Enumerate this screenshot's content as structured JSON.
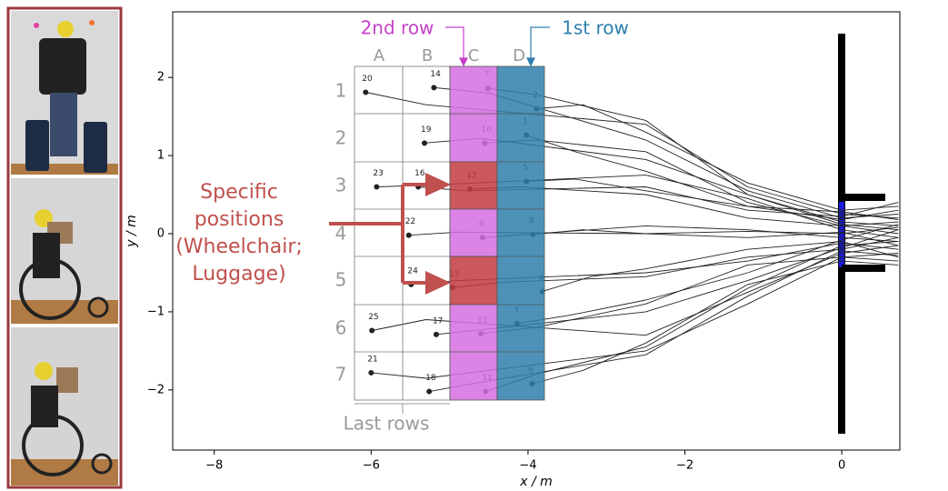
{
  "chart_data": {
    "type": "line",
    "x_label": "x / m",
    "y_label": "y / m",
    "xlim": [
      -8.53,
      0.74
    ],
    "ylim": [
      -2.77,
      2.84
    ],
    "xticks": [
      {
        "value": -8,
        "label": "−8"
      },
      {
        "value": -6,
        "label": "−6"
      },
      {
        "value": -4,
        "label": "−4"
      },
      {
        "value": -2,
        "label": "−2"
      },
      0
    ],
    "yticks": [
      2,
      1,
      0,
      {
        "value": -1,
        "label": "−1"
      },
      {
        "value": -2,
        "label": "−2"
      }
    ],
    "color": "#222222",
    "seat_map": {
      "columns": [
        "A",
        "B",
        "C",
        "D"
      ],
      "rows": [
        "1",
        "2",
        "3",
        "4",
        "5",
        "6",
        "7"
      ],
      "last_rows": "Last rows",
      "second_row": "2nd row",
      "first_row": "1st row"
    },
    "annotation": [
      "Specific",
      "positions",
      "(Wheelchair;",
      "Luggage)"
    ],
    "series": [
      {
        "name": "20",
        "x": [
          -6.07,
          -5.3,
          -2.5,
          -1.2,
          0,
          0.72
        ],
        "y": [
          1.81,
          1.65,
          1.4,
          0.6,
          0.25,
          0.2
        ]
      },
      {
        "name": "14",
        "x": [
          -5.2,
          -4.5,
          -2.5,
          -1.2,
          0,
          0.72
        ],
        "y": [
          1.87,
          1.8,
          1.2,
          0.55,
          0.2,
          0.25
        ]
      },
      {
        "name": "7",
        "x": [
          -4.51,
          -3.9,
          -2.5,
          -1.2,
          0,
          0.72
        ],
        "y": [
          1.86,
          1.78,
          1.45,
          0.5,
          0.15,
          0.1
        ]
      },
      {
        "name": "2",
        "x": [
          -3.89,
          -3.3,
          -2.5,
          -1.2,
          0,
          0.72
        ],
        "y": [
          1.6,
          1.65,
          1.3,
          0.65,
          0.3,
          0.35
        ]
      },
      {
        "name": "19",
        "x": [
          -5.32,
          -4.6,
          -2.5,
          -1.2,
          0,
          0.72
        ],
        "y": [
          1.16,
          1.22,
          0.95,
          0.5,
          0.12,
          0.05
        ]
      },
      {
        "name": "10",
        "x": [
          -4.55,
          -3.9,
          -2.5,
          -1.2,
          0,
          0.72
        ],
        "y": [
          1.16,
          1.2,
          1.05,
          0.4,
          0.1,
          0.15
        ]
      },
      {
        "name": "1",
        "x": [
          -4.02,
          -3.4,
          -2.5,
          -1.2,
          0,
          0.72
        ],
        "y": [
          1.26,
          1.05,
          0.8,
          0.35,
          0.18,
          0.3
        ]
      },
      {
        "name": "23",
        "x": [
          -5.93,
          -5.3,
          -2.5,
          -1.2,
          0,
          0.72
        ],
        "y": [
          0.6,
          0.62,
          0.75,
          0.45,
          0.05,
          -0.05
        ]
      },
      {
        "name": "16",
        "x": [
          -5.4,
          -4.8,
          -2.5,
          -1.2,
          0,
          0.72
        ],
        "y": [
          0.6,
          0.55,
          0.6,
          0.3,
          0.22,
          0.4
        ]
      },
      {
        "name": "13",
        "x": [
          -4.74,
          -4.1,
          -2.5,
          -1.2,
          0,
          0.72
        ],
        "y": [
          0.57,
          0.6,
          0.5,
          0.2,
          0.1,
          0.0
        ]
      },
      {
        "name": "5",
        "x": [
          -4.02,
          -3.4,
          -2.5,
          -1.2,
          0,
          0.72
        ],
        "y": [
          0.67,
          0.7,
          0.55,
          0.35,
          0.28,
          0.18
        ]
      },
      {
        "name": "22",
        "x": [
          -5.52,
          -4.9,
          -2.5,
          -1.2,
          0,
          0.72
        ],
        "y": [
          -0.02,
          0.02,
          0.0,
          0.03,
          0.0,
          0.08
        ]
      },
      {
        "name": "9",
        "x": [
          -4.58,
          -3.9,
          -2.5,
          -1.2,
          0,
          0.72
        ],
        "y": [
          -0.05,
          0.0,
          0.1,
          0.05,
          -0.05,
          -0.1
        ]
      },
      {
        "name": "8",
        "x": [
          -3.94,
          -3.3,
          -2.5,
          -1.2,
          0,
          0.72
        ],
        "y": [
          -0.01,
          0.05,
          0.0,
          -0.05,
          0.02,
          -0.15
        ]
      },
      {
        "name": "24",
        "x": [
          -5.49,
          -4.9,
          -2.5,
          -1.2,
          0,
          0.72
        ],
        "y": [
          -0.65,
          -0.6,
          -0.5,
          -0.35,
          -0.12,
          -0.2
        ]
      },
      {
        "name": "15",
        "x": [
          -4.96,
          -4.3,
          -2.5,
          -1.2,
          0,
          0.72
        ],
        "y": [
          -0.69,
          -0.62,
          -0.55,
          -0.3,
          -0.2,
          -0.05
        ]
      },
      {
        "name": "4",
        "x": [
          -3.82,
          -3.2,
          -2.5,
          -1.2,
          0,
          0.72
        ],
        "y": [
          -0.74,
          -0.55,
          -0.45,
          -0.2,
          -0.1,
          -0.3
        ]
      },
      {
        "name": "25",
        "x": [
          -5.99,
          -5.3,
          -2.5,
          -1.2,
          0,
          0.72
        ],
        "y": [
          -1.24,
          -1.1,
          -1.3,
          -0.75,
          -0.25,
          -0.15
        ]
      },
      {
        "name": "17",
        "x": [
          -5.17,
          -4.5,
          -2.5,
          -1.2,
          0,
          0.72
        ],
        "y": [
          -1.29,
          -1.22,
          -1.0,
          -0.6,
          -0.18,
          0.05
        ]
      },
      {
        "name": "12",
        "x": [
          -4.6,
          -3.9,
          -2.5,
          -1.2,
          0,
          0.72
        ],
        "y": [
          -1.28,
          -1.2,
          -0.9,
          -0.4,
          -0.3,
          -0.25
        ]
      },
      {
        "name": "3",
        "x": [
          -4.14,
          -3.5,
          -2.5,
          -1.2,
          0,
          0.72
        ],
        "y": [
          -1.15,
          -1.05,
          -0.85,
          -0.5,
          -0.08,
          0.12
        ]
      },
      {
        "name": "21",
        "x": [
          -6.0,
          -5.3,
          -2.5,
          -1.2,
          0,
          0.72
        ],
        "y": [
          -1.78,
          -1.85,
          -1.5,
          -0.9,
          -0.3,
          -0.35
        ]
      },
      {
        "name": "18",
        "x": [
          -5.26,
          -4.6,
          -2.5,
          -1.2,
          0,
          0.72
        ],
        "y": [
          -2.02,
          -1.9,
          -1.55,
          -0.8,
          -0.22,
          -0.28
        ]
      },
      {
        "name": "11",
        "x": [
          -4.54,
          -3.9,
          -2.5,
          -1.2,
          0,
          0.72
        ],
        "y": [
          -2.02,
          -1.8,
          -1.45,
          -0.7,
          -0.15,
          -0.1
        ]
      },
      {
        "name": "6",
        "x": [
          -3.95,
          -3.3,
          -2.5,
          -1.2,
          0,
          0.72
        ],
        "y": [
          -1.92,
          -1.75,
          -1.4,
          -0.65,
          -0.35,
          -0.4
        ]
      }
    ]
  }
}
